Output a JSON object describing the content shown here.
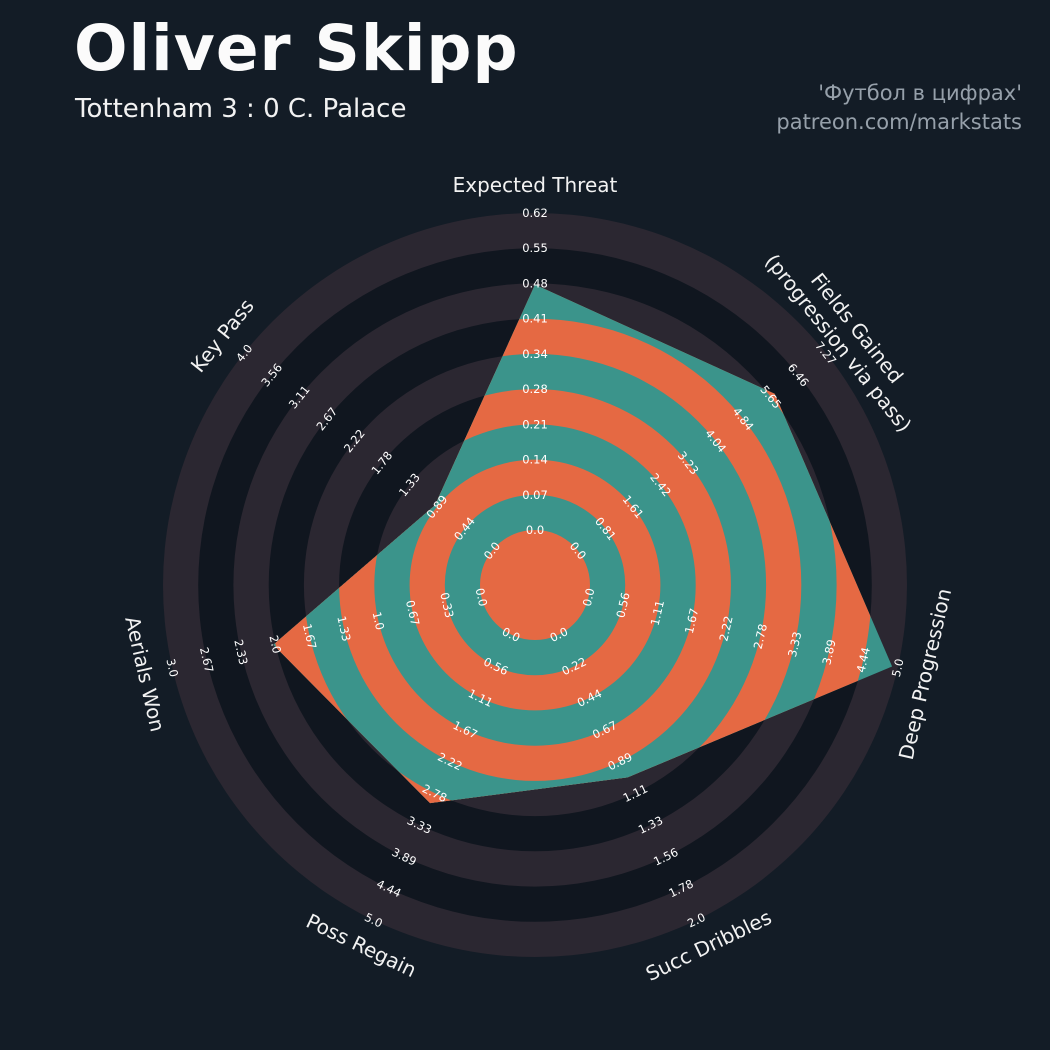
{
  "header": {
    "title": "Oliver Skipp",
    "subtitle": "Tottenham 3 : 0 C. Palace",
    "credit_line1": "'Футбол в цифрах'",
    "credit_line2": "patreon.com/markstats"
  },
  "colors": {
    "background": "#131c26",
    "ring_dark": "#10161f",
    "ring_gray": "#2b2731",
    "slice_teal": "#3b948b",
    "slice_orange": "#e56943",
    "tick_text": "#ffffff",
    "axis_title_text": "#f2f2f2",
    "title_text": "#fbfbfb",
    "subtitle_text": "#f2f2f2",
    "credit_text": "#96a0aa"
  },
  "chart_data": {
    "type": "radar",
    "title": "Oliver Skipp",
    "subtitle": "Tottenham 3 : 0 C. Palace",
    "grid": "concentric-rings",
    "legend_position": "none",
    "rings_per_axis": 9,
    "params": [
      {
        "label": "Expected Threat",
        "min": 0.0,
        "max": 0.62,
        "value": 0.48,
        "ticks": [
          "0.0",
          "0.07",
          "0.14",
          "0.21",
          "0.28",
          "0.34",
          "0.41",
          "0.48",
          "0.55",
          "0.62"
        ]
      },
      {
        "label": "Fields Gained\n(progression via pass)",
        "min": 0.0,
        "max": 7.27,
        "value": 5.77,
        "ticks": [
          "0.0",
          "0.81",
          "1.61",
          "2.42",
          "3.23",
          "4.04",
          "4.84",
          "5.65",
          "6.46",
          "7.27"
        ]
      },
      {
        "label": "Deep Progression",
        "min": 0.0,
        "max": 5.0,
        "value": 4.91,
        "ticks": [
          "0.0",
          "0.56",
          "1.11",
          "1.67",
          "2.22",
          "2.78",
          "3.33",
          "3.89",
          "4.44",
          "5.0"
        ]
      },
      {
        "label": "Succ Dribbles",
        "min": 0.0,
        "max": 2.0,
        "value": 1.0,
        "ticks": [
          "0.0",
          "0.22",
          "0.44",
          "0.67",
          "0.89",
          "1.11",
          "1.33",
          "1.56",
          "1.78",
          "2.0"
        ]
      },
      {
        "label": "Poss Regain",
        "min": 0.0,
        "max": 5.0,
        "value": 2.95,
        "ticks": [
          "0.0",
          "0.56",
          "1.11",
          "1.67",
          "2.22",
          "2.78",
          "3.33",
          "3.89",
          "4.44",
          "5.0"
        ]
      },
      {
        "label": "Aerials Won",
        "min": 0.0,
        "max": 3.0,
        "value": 2.02,
        "ticks": [
          "0.0",
          "0.33",
          "0.67",
          "1.0",
          "1.33",
          "1.67",
          "2.0",
          "2.33",
          "2.67",
          "3.0"
        ]
      },
      {
        "label": "Key Pass",
        "min": 0.0,
        "max": 4.0,
        "value": 0.92,
        "ticks": [
          "0.0",
          "0.44",
          "0.89",
          "1.33",
          "1.78",
          "2.22",
          "2.67",
          "3.11",
          "3.56",
          "4.0"
        ]
      }
    ]
  }
}
